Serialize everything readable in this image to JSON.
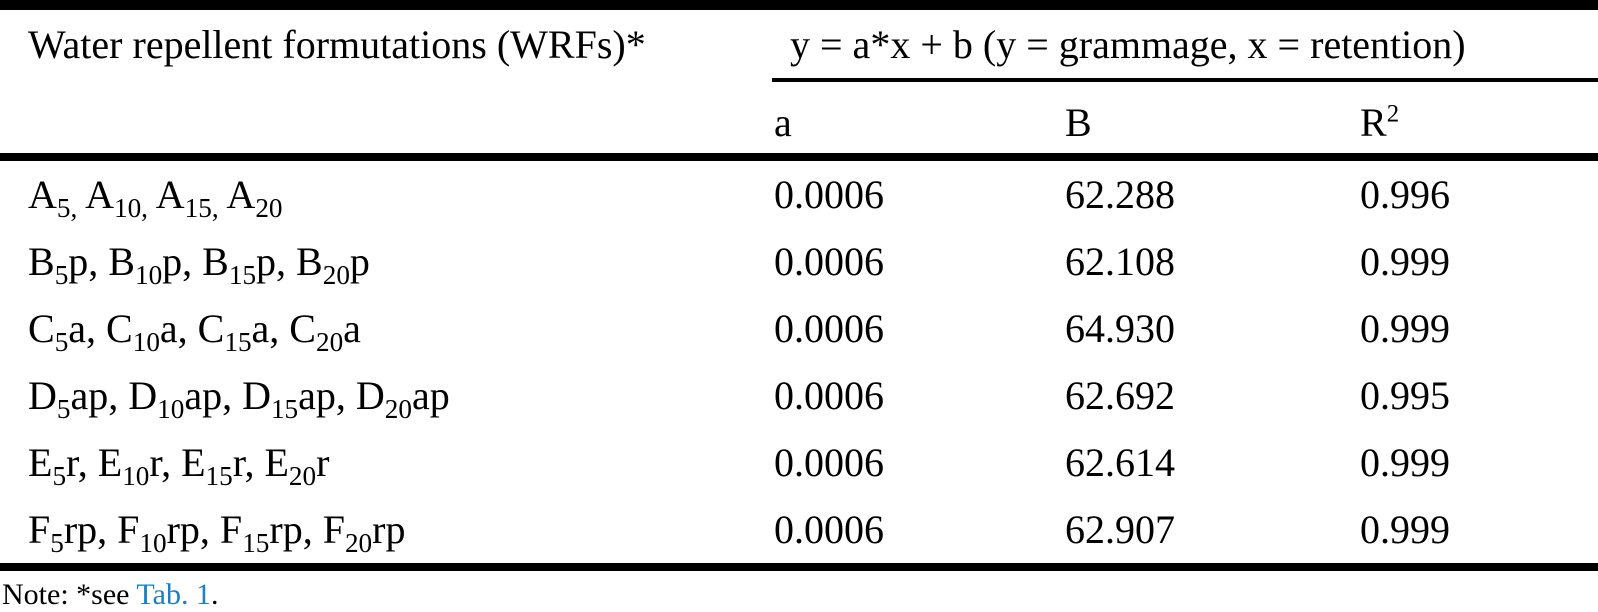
{
  "link_color": "#1a80c0",
  "text_color": "#000000",
  "background_color": "#ffffff",
  "table": {
    "col1_header": "Water repellent formutations (WRFs)*",
    "equation_header": "y = a*x + b (y = grammage, x = retention)",
    "sub_headers": {
      "a": "a",
      "b": "B",
      "r2": "R^{2}"
    },
    "rows": [
      {
        "label": "A_{5,} A_{10,} A_{15,} A_{20}",
        "a": "0.0006",
        "b": "62.288",
        "r2": "0.996"
      },
      {
        "label": "B_{5}p, B_{10}p, B_{15}p, B_{20}p",
        "a": "0.0006",
        "b": "62.108",
        "r2": "0.999"
      },
      {
        "label": "C_{5}a, C_{10}a, C_{15}a, C_{20}a",
        "a": "0.0006",
        "b": "64.930",
        "r2": "0.999"
      },
      {
        "label": "D_{5}ap, D_{10}ap, D_{15}ap, D_{20}ap",
        "a": "0.0006",
        "b": "62.692",
        "r2": "0.995"
      },
      {
        "label": "E_{5}r, E_{10}r, E_{15}r, E_{20}r",
        "a": "0.0006",
        "b": "62.614",
        "r2": "0.999"
      },
      {
        "label": "F_{5}rp, F_{10}rp, F_{15}rp, F_{20}rp",
        "a": "0.0006",
        "b": "62.907",
        "r2": "0.999"
      }
    ]
  },
  "footnote": {
    "prefix": "Note: *see ",
    "link": "Tab. 1",
    "suffix": "."
  }
}
